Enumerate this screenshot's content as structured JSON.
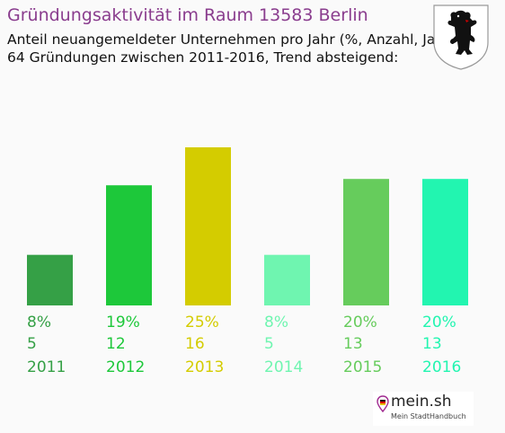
{
  "header": {
    "title": "Gründungsaktivität im Raum 13583 Berlin",
    "subtitle_line1": "Anteil neuangemeldeter Unternehmen pro Jahr (%, Anzahl, Jahr)",
    "subtitle_line2": "64 Gründungen zwischen 2011-2016, Trend absteigend:"
  },
  "logo": {
    "name": "mein.sh",
    "tagline": "Mein StadtHandbuch",
    "icon": "map-pin-icon"
  },
  "crest": {
    "icon": "berlin-bear-crest-icon"
  },
  "chart_data": {
    "type": "bar",
    "categories": [
      "2011",
      "2012",
      "2013",
      "2014",
      "2015",
      "2016"
    ],
    "values": [
      8,
      19,
      25,
      8,
      20,
      20
    ],
    "percent_labels": [
      "8%",
      "19%",
      "25%",
      "8%",
      "20%",
      "20%"
    ],
    "count_labels": [
      "5",
      "12",
      "16",
      "5",
      "13",
      "13"
    ],
    "colors": [
      "#35a046",
      "#1dc83a",
      "#d4cc00",
      "#6ff5b0",
      "#66cc5c",
      "#22f5b0"
    ],
    "ylim": [
      0,
      25
    ],
    "grid": false,
    "legend": "none"
  }
}
